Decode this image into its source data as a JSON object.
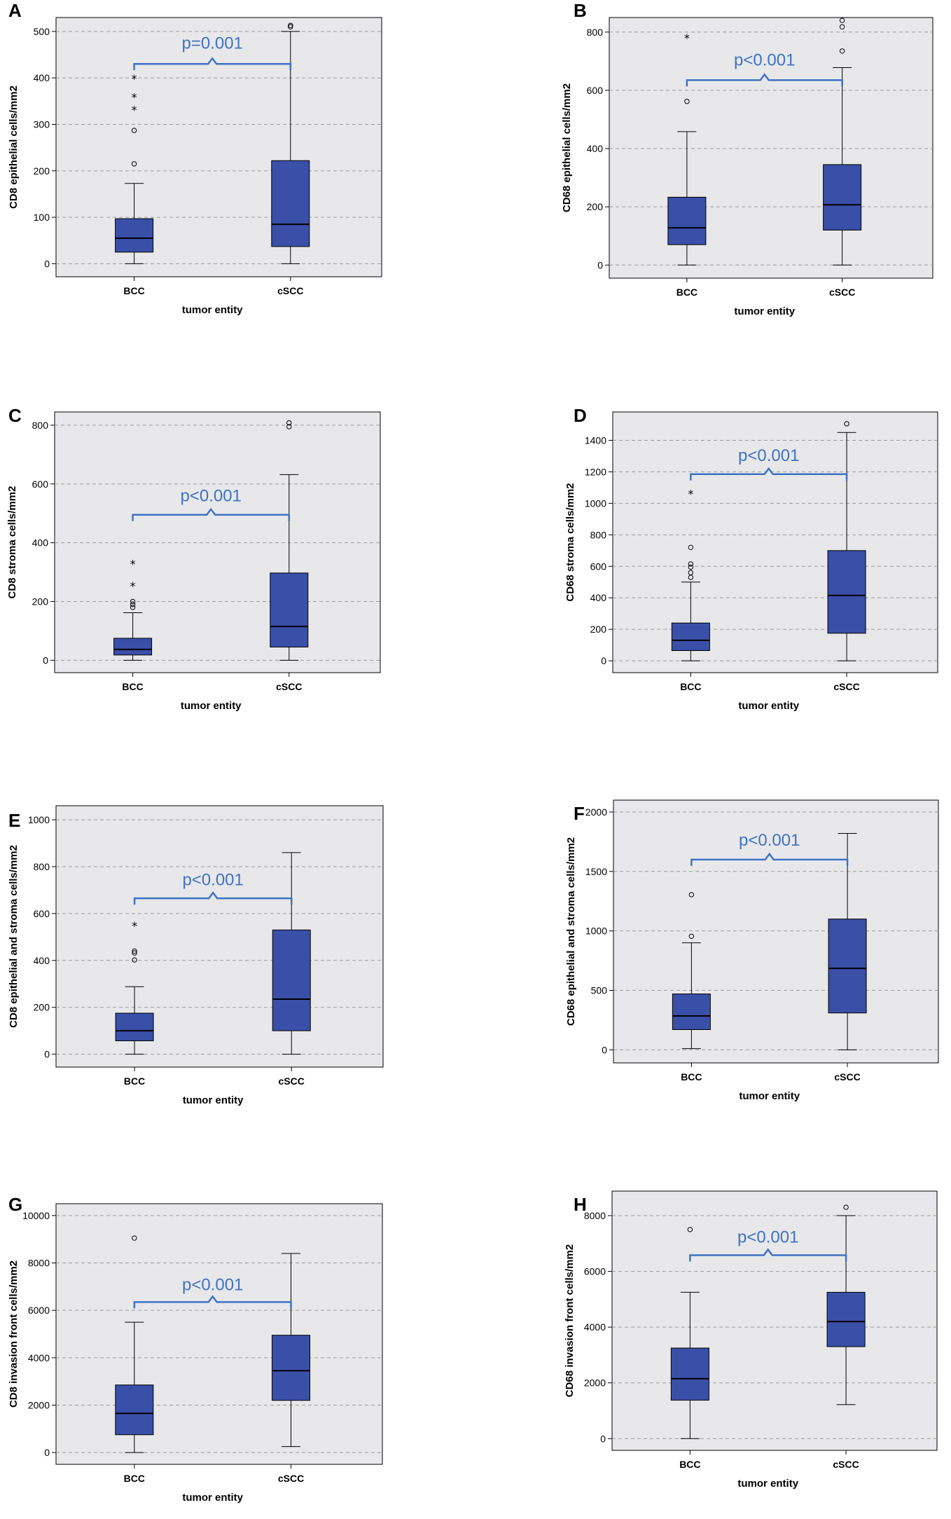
{
  "figure": {
    "box_color": "#3a4fa8",
    "plot_bg": "#e8e8ea",
    "grid_color": "#9a9a9a",
    "bracket_color": "#3f72c4",
    "pvalue_color": "#3f72c4"
  },
  "chart_data": [
    {
      "type": "box",
      "panel": "A",
      "xlabel": "tumor entity",
      "ylabel": "CD8 epithelial cells/mm2",
      "categories": [
        "BCC",
        "cSCC"
      ],
      "ylim": [
        -28,
        530
      ],
      "yticks": [
        0,
        100,
        200,
        300,
        400,
        500
      ],
      "pvalue": "p=0.001",
      "bracket_y": 430,
      "pvalue_y": 475,
      "boxes": [
        {
          "min": 0,
          "q1": 25,
          "median": 55,
          "q3": 97,
          "max": 173,
          "outliers_circle": [
            215,
            287
          ],
          "outliers_star": [
            335,
            362,
            402
          ]
        },
        {
          "min": 0,
          "q1": 37,
          "median": 85,
          "q3": 222,
          "max": 500,
          "outliers_circle": [
            510,
            513
          ],
          "outliers_star": []
        }
      ]
    },
    {
      "type": "box",
      "panel": "B",
      "xlabel": "tumor entity",
      "ylabel": "CD68 epithelial cells/mm2",
      "categories": [
        "BCC",
        "cSCC"
      ],
      "ylim": [
        -45,
        850
      ],
      "yticks": [
        0,
        200,
        400,
        600,
        800
      ],
      "pvalue": "p<0.001",
      "bracket_y": 635,
      "pvalue_y": 705,
      "boxes": [
        {
          "min": 0,
          "q1": 70,
          "median": 128,
          "q3": 233,
          "max": 458,
          "outliers_circle": [
            562
          ],
          "outliers_star": [
            785
          ]
        },
        {
          "min": 0,
          "q1": 120,
          "median": 207,
          "q3": 345,
          "max": 678,
          "outliers_circle": [
            735,
            818,
            840
          ],
          "outliers_star": []
        }
      ]
    },
    {
      "type": "box",
      "panel": "C",
      "xlabel": "tumor entity",
      "ylabel": "CD8 stroma cells/mm2",
      "categories": [
        "BCC",
        "cSCC"
      ],
      "ylim": [
        -42,
        845
      ],
      "yticks": [
        0,
        200,
        400,
        600,
        800
      ],
      "pvalue": "p<0.001",
      "bracket_y": 495,
      "pvalue_y": 560,
      "boxes": [
        {
          "min": 0,
          "q1": 18,
          "median": 37,
          "q3": 75,
          "max": 162,
          "outliers_circle": [
            180,
            190,
            200
          ],
          "outliers_star": [
            258,
            333
          ]
        },
        {
          "min": 0,
          "q1": 45,
          "median": 115,
          "q3": 297,
          "max": 632,
          "outliers_circle": [
            795,
            808
          ],
          "outliers_star": []
        }
      ]
    },
    {
      "type": "box",
      "panel": "D",
      "xlabel": "tumor entity",
      "ylabel": "CD68 stroma cells/mm2",
      "categories": [
        "BCC",
        "cSCC"
      ],
      "ylim": [
        -75,
        1580
      ],
      "yticks": [
        0,
        200,
        400,
        600,
        800,
        1000,
        1200,
        1400
      ],
      "pvalue": "p<0.001",
      "bracket_y": 1185,
      "pvalue_y": 1305,
      "boxes": [
        {
          "min": 0,
          "q1": 65,
          "median": 130,
          "q3": 240,
          "max": 500,
          "outliers_circle": [
            530,
            560,
            595,
            615,
            720
          ],
          "outliers_star": [
            1070
          ]
        },
        {
          "min": 0,
          "q1": 175,
          "median": 415,
          "q3": 700,
          "max": 1450,
          "outliers_circle": [
            1505
          ],
          "outliers_star": []
        }
      ]
    },
    {
      "type": "box",
      "panel": "E",
      "xlabel": "tumor entity",
      "ylabel": "CD8 epithelial and stroma cells/mm2",
      "categories": [
        "BCC",
        "cSCC"
      ],
      "ylim": [
        -55,
        1060
      ],
      "yticks": [
        0,
        200,
        400,
        600,
        800,
        1000
      ],
      "pvalue": "p<0.001",
      "bracket_y": 665,
      "pvalue_y": 745,
      "boxes": [
        {
          "min": 0,
          "q1": 57,
          "median": 100,
          "q3": 175,
          "max": 288,
          "outliers_circle": [
            402,
            432,
            440
          ],
          "outliers_star": [
            555
          ]
        },
        {
          "min": 0,
          "q1": 100,
          "median": 235,
          "q3": 530,
          "max": 860,
          "outliers_circle": [],
          "outliers_star": []
        }
      ]
    },
    {
      "type": "box",
      "panel": "F",
      "xlabel": "tumor entity",
      "ylabel": "CD68 epithelial and stroma cells/mm2",
      "categories": [
        "BCC",
        "cSCC"
      ],
      "ylim": [
        -110,
        2100
      ],
      "yticks": [
        0,
        500,
        1000,
        1500,
        2000
      ],
      "pvalue": "p<0.001",
      "bracket_y": 1600,
      "pvalue_y": 1765,
      "boxes": [
        {
          "min": 10,
          "q1": 170,
          "median": 285,
          "q3": 470,
          "max": 900,
          "outliers_circle": [
            955,
            1305
          ],
          "outliers_star": []
        },
        {
          "min": 0,
          "q1": 310,
          "median": 685,
          "q3": 1100,
          "max": 1820,
          "outliers_circle": [],
          "outliers_star": []
        }
      ]
    },
    {
      "type": "box",
      "panel": "G",
      "xlabel": "tumor entity",
      "ylabel": "CD8 invasion front cells/mm2",
      "categories": [
        "BCC",
        "cSCC"
      ],
      "ylim": [
        -500,
        10500
      ],
      "yticks": [
        0,
        2000,
        4000,
        6000,
        8000,
        10000
      ],
      "pvalue": "p<0.001",
      "bracket_y": 6350,
      "pvalue_y": 7080,
      "boxes": [
        {
          "min": 0,
          "q1": 750,
          "median": 1650,
          "q3": 2850,
          "max": 5500,
          "outliers_circle": [
            9050
          ],
          "outliers_star": []
        },
        {
          "min": 250,
          "q1": 2200,
          "median": 3450,
          "q3": 4950,
          "max": 8400,
          "outliers_circle": [],
          "outliers_star": []
        }
      ]
    },
    {
      "type": "box",
      "panel": "H",
      "xlabel": "tumor entity",
      "ylabel": "CD68 invasion front cells/mm2",
      "categories": [
        "BCC",
        "cSCC"
      ],
      "ylim": [
        -420,
        8880
      ],
      "yticks": [
        0,
        2000,
        4000,
        6000,
        8000
      ],
      "pvalue": "p<0.001",
      "bracket_y": 6580,
      "pvalue_y": 7230,
      "boxes": [
        {
          "min": 0,
          "q1": 1380,
          "median": 2150,
          "q3": 3250,
          "max": 5250,
          "outliers_circle": [
            7500
          ],
          "outliers_star": []
        },
        {
          "min": 1220,
          "q1": 3300,
          "median": 4200,
          "q3": 5250,
          "max": 8000,
          "outliers_circle": [
            8300
          ],
          "outliers_star": []
        }
      ]
    }
  ]
}
